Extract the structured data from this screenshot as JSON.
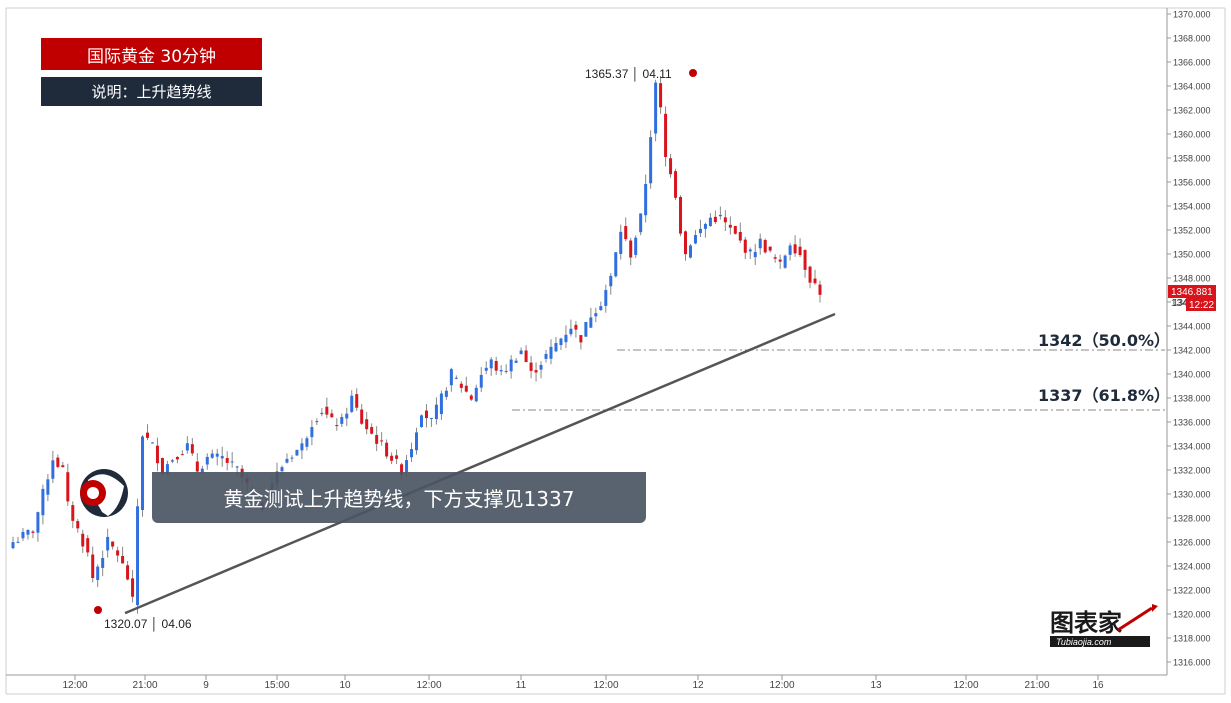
{
  "header": {
    "title": "国际黄金  30分钟",
    "subtitle": "说明：上升趋势线"
  },
  "overlay_text": "黄金测试上升趋势线，下方支撑见1337",
  "annotations": {
    "high": "1365.37 │ 04.11",
    "low": "1320.07 │ 04.06",
    "fib50": "1342（50.0%）",
    "fib618": "1337（61.8%）",
    "last_price": "1346.881",
    "countdown": "12:22",
    "price_partial": "134"
  },
  "brand": {
    "name": "图表家",
    "site": "Tubiaojia.com"
  },
  "colors": {
    "up": "#2f6fe0",
    "down": "#d8151c",
    "title_bg": "#c00000",
    "subtitle_bg": "#1f2a3a",
    "overlay_bg": "#4b5563",
    "trendline": "#555555",
    "price_tag": "#d8151c"
  },
  "chart_data": {
    "type": "candlestick",
    "timeframe": "30m",
    "y_axis": {
      "range": [
        1315,
        1370
      ],
      "ticks": [
        "1370.000",
        "1368.000",
        "1366.000",
        "1364.000",
        "1362.000",
        "1360.000",
        "1358.000",
        "1356.000",
        "1354.000",
        "1352.000",
        "1350.000",
        "1348.000",
        "1346.000",
        "1344.000",
        "1342.000",
        "1340.000",
        "1338.000",
        "1336.000",
        "1334.000",
        "1332.000",
        "1330.000",
        "1328.000",
        "1326.000",
        "1324.000",
        "1322.000",
        "1320.000",
        "1318.000",
        "1316.000"
      ]
    },
    "x_axis": {
      "ticks": [
        "12:00",
        "21:00",
        "9",
        "15:00",
        "10",
        "12:00",
        "11",
        "12:00",
        "12",
        "12:00",
        "13",
        "12:00",
        "21:00",
        "16"
      ]
    },
    "levels": [
      {
        "label": "1342（50.0%）",
        "value": 1342
      },
      {
        "label": "1337（61.8%）",
        "value": 1337
      }
    ],
    "trendline": {
      "from_value": 1320.07,
      "to_value": 1345
    },
    "swing_points": [
      {
        "label": "1320.07 │ 04.06",
        "value": 1320.07
      },
      {
        "label": "1365.37 │ 04.11",
        "value": 1365.37
      }
    ],
    "last_price": 1346.881,
    "close_path": [
      [
        0,
        1326
      ],
      [
        4,
        1327
      ],
      [
        8,
        1333
      ],
      [
        10,
        1332
      ],
      [
        11,
        1329
      ],
      [
        13,
        1327
      ],
      [
        15,
        1325
      ],
      [
        16,
        1323
      ],
      [
        17,
        1324
      ],
      [
        19,
        1326
      ],
      [
        21,
        1325
      ],
      [
        23,
        1323
      ],
      [
        24,
        1321
      ],
      [
        25,
        1329
      ],
      [
        26,
        1335
      ],
      [
        28,
        1334
      ],
      [
        30,
        1332
      ],
      [
        32,
        1333
      ],
      [
        35,
        1334
      ],
      [
        37,
        1332
      ],
      [
        39,
        1333
      ],
      [
        42,
        1333
      ],
      [
        45,
        1332
      ],
      [
        48,
        1330
      ],
      [
        50,
        1329
      ],
      [
        52,
        1331
      ],
      [
        55,
        1333
      ],
      [
        58,
        1334
      ],
      [
        60,
        1336
      ],
      [
        62,
        1337
      ],
      [
        64,
        1336
      ],
      [
        66,
        1336
      ],
      [
        68,
        1338
      ],
      [
        70,
        1336
      ],
      [
        72,
        1335
      ],
      [
        74,
        1334
      ],
      [
        76,
        1333
      ],
      [
        78,
        1332
      ],
      [
        80,
        1334
      ],
      [
        82,
        1337
      ],
      [
        84,
        1336
      ],
      [
        86,
        1338
      ],
      [
        88,
        1340
      ],
      [
        90,
        1339
      ],
      [
        92,
        1338
      ],
      [
        94,
        1340
      ],
      [
        96,
        1341
      ],
      [
        98,
        1340
      ],
      [
        100,
        1341
      ],
      [
        102,
        1342
      ],
      [
        104,
        1340
      ],
      [
        106,
        1341
      ],
      [
        108,
        1342
      ],
      [
        110,
        1343
      ],
      [
        112,
        1344
      ],
      [
        114,
        1343
      ],
      [
        116,
        1345
      ],
      [
        118,
        1346
      ],
      [
        120,
        1348
      ],
      [
        122,
        1352
      ],
      [
        124,
        1350
      ],
      [
        126,
        1353
      ],
      [
        127,
        1356
      ],
      [
        128,
        1360
      ],
      [
        129,
        1364
      ],
      [
        130,
        1362
      ],
      [
        131,
        1358
      ],
      [
        132,
        1357
      ],
      [
        133,
        1355
      ],
      [
        134,
        1352
      ],
      [
        135,
        1350
      ],
      [
        136,
        1351
      ],
      [
        138,
        1352
      ],
      [
        140,
        1353
      ],
      [
        142,
        1353
      ],
      [
        144,
        1352
      ],
      [
        146,
        1351
      ],
      [
        148,
        1350
      ],
      [
        150,
        1351
      ],
      [
        152,
        1350
      ],
      [
        154,
        1349
      ],
      [
        156,
        1351
      ],
      [
        158,
        1350
      ],
      [
        160,
        1348
      ],
      [
        162,
        1346.881
      ]
    ]
  }
}
